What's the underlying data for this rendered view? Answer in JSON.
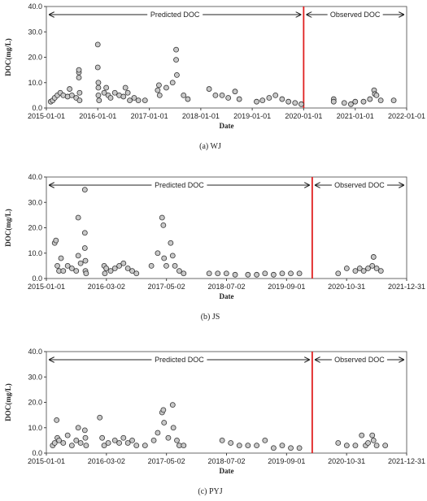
{
  "chart_data": [
    {
      "type": "scatter",
      "caption": "(a)  WJ",
      "xlabel": "Date",
      "ylabel": "DOC(mg/L)",
      "annotations": [
        "Predicted DOC",
        "Observed DOC"
      ],
      "divider": "2020-01-01",
      "divider_color": "#e02020",
      "color": "#c8c8c8",
      "xlim": [
        "2015-01-01",
        "2022-01-01"
      ],
      "xticks": [
        "2015-01-01",
        "2016-01-01",
        "2017-01-01",
        "2018-01-01",
        "2019-01-01",
        "2020-01-01",
        "2021-01-01",
        "2022-01-01"
      ],
      "ylim": [
        0,
        40
      ],
      "yticks": [
        {
          "value": 0,
          "label": "0.0"
        },
        {
          "value": 10,
          "label": "10.0"
        },
        {
          "value": 20,
          "label": "20.0"
        },
        {
          "value": 30,
          "label": "30.0"
        },
        {
          "value": 40,
          "label": "40.0"
        }
      ],
      "x": [
        "2015-02-01",
        "2015-02-15",
        "2015-03-01",
        "2015-03-20",
        "2015-04-10",
        "2015-05-01",
        "2015-06-01",
        "2015-06-15",
        "2015-07-01",
        "2015-08-01",
        "2015-08-20",
        "2015-08-20",
        "2015-08-20",
        "2015-08-25",
        "2015-08-25",
        "2016-01-01",
        "2016-01-01",
        "2016-01-05",
        "2016-01-05",
        "2016-01-05",
        "2016-01-10",
        "2016-02-15",
        "2016-03-01",
        "2016-03-15",
        "2016-04-01",
        "2016-05-01",
        "2016-06-01",
        "2016-07-01",
        "2016-07-15",
        "2016-08-01",
        "2016-08-15",
        "2016-09-15",
        "2016-10-15",
        "2016-12-01",
        "2017-03-01",
        "2017-03-10",
        "2017-03-15",
        "2017-05-01",
        "2017-06-15",
        "2017-07-10",
        "2017-07-10",
        "2017-07-15",
        "2017-09-01",
        "2017-10-01",
        "2018-03-01",
        "2018-04-15",
        "2018-06-01",
        "2018-07-15",
        "2018-09-01",
        "2018-10-01",
        "2019-02-01",
        "2019-03-15",
        "2019-05-01",
        "2019-06-15",
        "2019-08-01",
        "2019-09-15",
        "2019-11-01",
        "2019-12-15",
        "2020-08-01",
        "2020-08-01",
        "2020-10-15",
        "2020-12-01",
        "2021-01-01",
        "2021-03-01",
        "2021-04-15",
        "2021-05-15",
        "2021-05-20",
        "2021-06-01",
        "2021-07-01",
        "2021-10-01"
      ],
      "values": [
        2.5,
        3,
        4,
        5,
        6,
        5,
        4.5,
        7.5,
        5,
        4,
        12,
        14,
        15,
        6,
        3,
        25,
        16,
        10,
        8,
        5,
        3,
        6,
        8,
        5,
        4,
        6,
        5,
        4.5,
        8,
        6,
        3,
        4,
        3,
        3,
        7,
        9,
        5,
        8,
        10,
        23,
        19,
        13,
        5,
        3.5,
        7.5,
        5,
        5,
        4,
        6.5,
        3.5,
        2.5,
        3,
        4,
        5,
        3.5,
        2.5,
        2,
        1.5,
        3.5,
        2.5,
        2,
        1.5,
        2.5,
        2.5,
        3.5,
        7,
        5.5,
        5,
        3,
        3
      ]
    },
    {
      "type": "scatter",
      "caption": "(b)  JS",
      "xlabel": "Date",
      "ylabel": "DOC(mg/L)",
      "annotations": [
        "Predicted DOC",
        "Observed DOC"
      ],
      "divider": "2020-03-01",
      "divider_color": "#e02020",
      "color": "#c8c8c8",
      "xlim": [
        "2015-01-01",
        "2021-12-31"
      ],
      "xticks": [
        "2015-01-01",
        "2016-03-02",
        "2017-05-02",
        "2018-07-02",
        "2019-09-01",
        "2020-10-31",
        "2021-12-31"
      ],
      "ylim": [
        0,
        40
      ],
      "yticks": [
        {
          "value": 0,
          "label": "0.0"
        },
        {
          "value": 10,
          "label": "10.0"
        },
        {
          "value": 20,
          "label": "20.0"
        },
        {
          "value": 30,
          "label": "30.0"
        },
        {
          "value": 40,
          "label": "40.0"
        }
      ],
      "x": [
        "2015-03-01",
        "2015-03-10",
        "2015-03-20",
        "2015-04-01",
        "2015-04-15",
        "2015-05-01",
        "2015-06-01",
        "2015-07-01",
        "2015-08-01",
        "2015-08-15",
        "2015-08-15",
        "2015-09-01",
        "2015-10-01",
        "2015-10-01",
        "2015-10-01",
        "2015-10-05",
        "2015-10-05",
        "2015-10-10",
        "2016-02-15",
        "2016-02-20",
        "2016-03-01",
        "2016-04-01",
        "2016-05-01",
        "2016-06-01",
        "2016-07-01",
        "2016-08-01",
        "2016-09-01",
        "2016-10-01",
        "2017-01-15",
        "2017-03-01",
        "2017-04-01",
        "2017-04-10",
        "2017-04-15",
        "2017-05-01",
        "2017-06-01",
        "2017-06-15",
        "2017-07-01",
        "2017-08-01",
        "2017-09-01",
        "2018-03-01",
        "2018-05-01",
        "2018-07-01",
        "2018-09-01",
        "2018-12-01",
        "2019-02-01",
        "2019-04-01",
        "2019-06-01",
        "2019-08-01",
        "2019-10-01",
        "2019-12-01",
        "2020-09-01",
        "2020-11-01",
        "2021-01-01",
        "2021-02-01",
        "2021-03-01",
        "2021-04-01",
        "2021-05-01",
        "2021-05-10",
        "2021-06-01",
        "2021-07-01"
      ],
      "values": [
        14,
        15,
        5,
        3,
        8,
        3,
        5,
        4,
        3,
        9,
        24,
        6,
        35,
        18,
        12,
        7,
        3,
        2,
        5,
        2,
        4,
        3,
        4,
        5,
        6,
        4,
        3,
        2,
        5,
        10,
        24,
        21,
        8,
        5,
        14,
        9,
        5,
        3,
        2,
        2,
        2,
        2,
        1.5,
        1.5,
        1.5,
        2,
        1.5,
        2,
        2,
        2,
        2,
        4,
        3,
        4,
        3,
        4,
        5,
        8.5,
        4,
        3
      ]
    },
    {
      "type": "scatter",
      "caption": "(c)  PYJ",
      "xlabel": "Date",
      "ylabel": "DOC(mg/L)",
      "annotations": [
        "Predicted DOC",
        "Observed DOC"
      ],
      "divider": "2020-03-01",
      "divider_color": "#e02020",
      "color": "#c8c8c8",
      "xlim": [
        "2015-01-01",
        "2021-12-31"
      ],
      "xticks": [
        "2015-01-01",
        "2016-03-02",
        "2017-05-02",
        "2018-07-02",
        "2019-09-01",
        "2020-10-31",
        "2021-12-31"
      ],
      "ylim": [
        0,
        40
      ],
      "yticks": [
        {
          "value": 0,
          "label": "0.0"
        },
        {
          "value": 10,
          "label": "10.0"
        },
        {
          "value": 20,
          "label": "20.0"
        },
        {
          "value": 30,
          "label": "30.0"
        },
        {
          "value": 40,
          "label": "40.0"
        }
      ],
      "x": [
        "2015-02-15",
        "2015-03-01",
        "2015-03-15",
        "2015-03-20",
        "2015-04-01",
        "2015-05-01",
        "2015-06-01",
        "2015-07-01",
        "2015-08-01",
        "2015-08-15",
        "2015-09-01",
        "2015-10-01",
        "2015-10-05",
        "2015-10-10",
        "2016-01-15",
        "2016-02-01",
        "2016-02-15",
        "2016-03-15",
        "2016-05-01",
        "2016-06-01",
        "2016-07-01",
        "2016-08-01",
        "2016-09-01",
        "2016-10-01",
        "2016-12-01",
        "2017-02-01",
        "2017-03-01",
        "2017-04-01",
        "2017-04-10",
        "2017-04-15",
        "2017-05-15",
        "2017-06-15",
        "2017-06-20",
        "2017-07-15",
        "2017-08-01",
        "2017-09-01",
        "2018-06-01",
        "2018-08-01",
        "2018-10-01",
        "2018-12-01",
        "2019-02-01",
        "2019-04-01",
        "2019-06-01",
        "2019-08-01",
        "2019-10-01",
        "2019-12-01",
        "2020-09-01",
        "2020-11-01",
        "2021-01-01",
        "2021-02-15",
        "2021-03-15",
        "2021-04-01",
        "2021-05-01",
        "2021-05-10",
        "2021-06-01",
        "2021-08-01"
      ],
      "values": [
        3,
        4,
        13,
        6,
        5,
        4,
        7,
        3,
        5,
        10,
        4,
        9,
        6,
        3,
        14,
        6,
        3,
        4,
        5,
        4,
        6,
        4,
        5,
        3,
        3,
        5,
        8,
        16,
        17,
        12,
        6,
        19,
        10,
        5,
        3,
        3,
        5,
        4,
        3,
        3,
        3,
        5,
        2,
        3,
        2,
        2,
        4,
        3,
        3,
        7,
        3,
        4,
        7,
        5,
        3,
        3
      ]
    }
  ]
}
